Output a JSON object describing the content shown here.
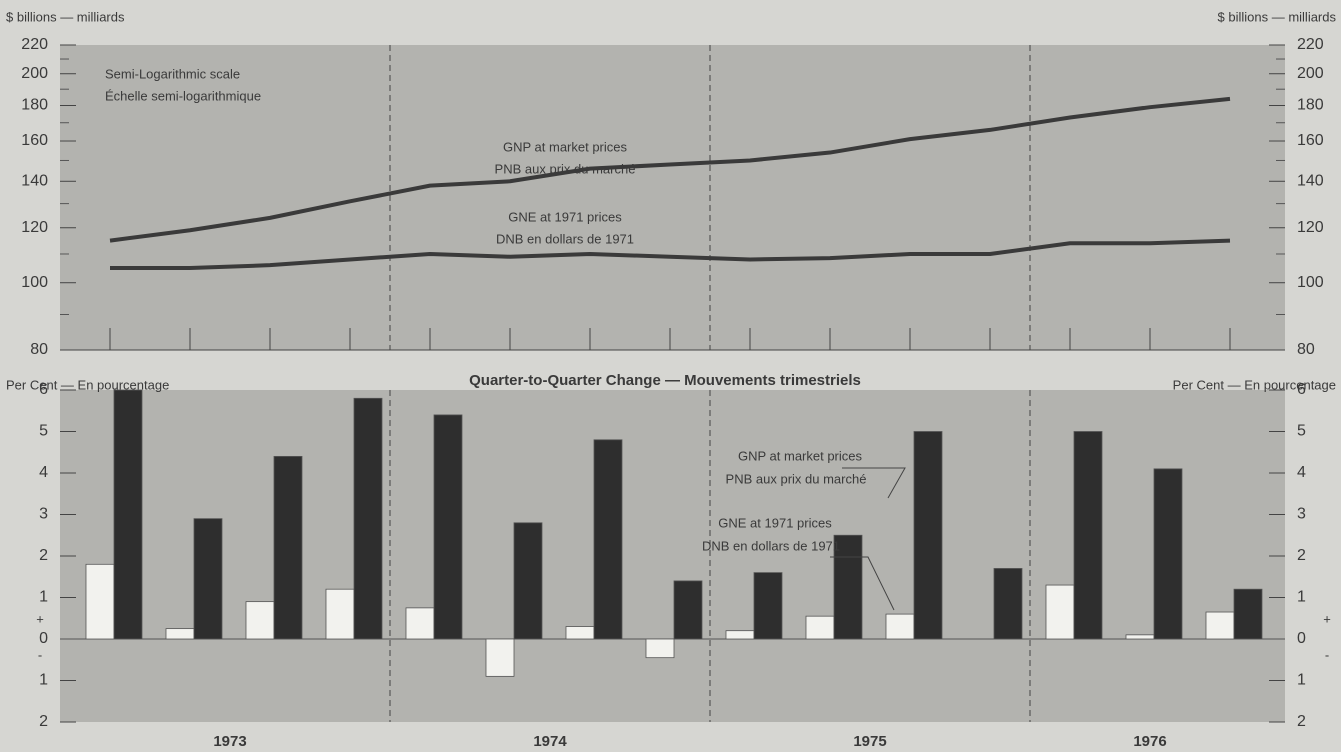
{
  "chart_data": [
    {
      "type": "line",
      "y_label": "$ billions — milliards",
      "annotations": [
        "Semi-Logarithmic scale",
        "Échelle semi-logarithmique"
      ],
      "log_scale": true,
      "categories": [
        null,
        null,
        null,
        null,
        null,
        null,
        null,
        null,
        null,
        null,
        null,
        null,
        null,
        null,
        null
      ],
      "series": [
        {
          "name": "GNP at market prices",
          "name_fr": "PNB aux prix du marché",
          "color": "#3a3a3a",
          "values": [
            115,
            119,
            124,
            131,
            138,
            140,
            146,
            148,
            150,
            154,
            161,
            166,
            173,
            179,
            184
          ]
        },
        {
          "name": "GNE at 1971 prices",
          "name_fr": "DNB en dollars de 1971",
          "color": "#3a3a3a",
          "values": [
            105,
            105,
            106,
            108,
            110,
            109,
            110,
            109,
            108,
            108.5,
            110,
            110,
            114,
            114,
            115
          ]
        }
      ],
      "ylim": [
        80,
        220
      ],
      "yticks": [
        80,
        100,
        120,
        140,
        160,
        180,
        200,
        220
      ],
      "yminor_ticks": [
        90,
        110,
        130,
        150,
        170,
        190,
        210
      ],
      "background": "#b3b3af"
    },
    {
      "type": "bar",
      "title": "Quarter-to-Quarter Change — Mouvements trimestriels",
      "y_label": "Per Cent — En pourcentage",
      "sign_labels": [
        "+",
        "-"
      ],
      "year_labels": [
        "1973",
        "1974",
        "1975",
        "1976"
      ],
      "categories": [
        null,
        null,
        null,
        null,
        null,
        null,
        null,
        null,
        null,
        null,
        null,
        null,
        null,
        null,
        null
      ],
      "series": [
        {
          "name": "GNE at 1971 prices",
          "name_fr": "DNB en dollars de 1971",
          "color": "#f2f2ee",
          "values": [
            1.8,
            0.25,
            0.9,
            1.2,
            0.75,
            -0.9,
            0.3,
            -0.45,
            0.2,
            0.55,
            0.6,
            0,
            1.3,
            0.1,
            0.65
          ]
        },
        {
          "name": "GNP at market prices",
          "name_fr": "PNB aux prix du marché",
          "color": "#2e2e2e",
          "values": [
            6.0,
            2.9,
            4.4,
            5.8,
            5.4,
            2.8,
            4.8,
            1.4,
            1.6,
            2.5,
            5.0,
            1.7,
            5.0,
            4.1,
            1.2
          ]
        }
      ],
      "ylim": [
        -2,
        6
      ],
      "yticks": [
        {
          "value": -2,
          "label": "2"
        },
        {
          "value": -1,
          "label": "1"
        },
        0,
        1,
        2,
        3,
        4,
        5,
        6
      ],
      "background": "#b3b3af"
    }
  ]
}
